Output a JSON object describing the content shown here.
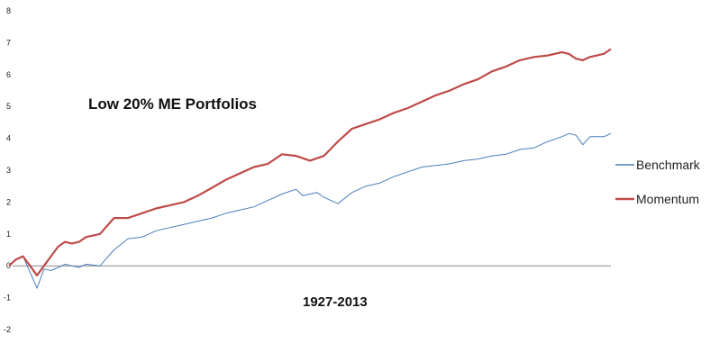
{
  "chart_data": {
    "type": "line",
    "title": "",
    "xlabel": "",
    "ylabel": "",
    "ylim": [
      -2,
      8
    ],
    "yticks": [
      -2,
      -1,
      0,
      1,
      2,
      3,
      4,
      5,
      6,
      7,
      8
    ],
    "grid": false,
    "legend_position": "right",
    "annotations": {
      "portfolio": "Low 20% ME Portfolios",
      "period": "1927-2013"
    },
    "x_start_year": 1927,
    "x_end_year": 2013,
    "series": [
      {
        "name": "Benchmark",
        "color": "#4a7ebb",
        "x": [
          1927,
          1928,
          1929,
          1930,
          1931,
          1932,
          1933,
          1934,
          1935,
          1936,
          1937,
          1938,
          1940,
          1942,
          1944,
          1946,
          1948,
          1950,
          1952,
          1954,
          1956,
          1958,
          1960,
          1962,
          1964,
          1966,
          1968,
          1969,
          1971,
          1972,
          1974,
          1976,
          1978,
          1980,
          1982,
          1984,
          1986,
          1988,
          1990,
          1992,
          1994,
          1996,
          1998,
          2000,
          2002,
          2004,
          2006,
          2007,
          2008,
          2009,
          2010,
          2012,
          2013
        ],
        "values": [
          0.0,
          0.2,
          0.3,
          -0.2,
          -0.7,
          -0.1,
          -0.15,
          -0.05,
          0.05,
          0.0,
          -0.05,
          0.05,
          0.0,
          0.5,
          0.85,
          0.9,
          1.1,
          1.2,
          1.3,
          1.4,
          1.5,
          1.65,
          1.75,
          1.85,
          2.05,
          2.25,
          2.4,
          2.2,
          2.3,
          2.15,
          1.95,
          2.3,
          2.5,
          2.6,
          2.8,
          2.95,
          3.1,
          3.15,
          3.2,
          3.3,
          3.35,
          3.45,
          3.5,
          3.65,
          3.7,
          3.9,
          4.05,
          4.15,
          4.1,
          3.8,
          4.05,
          4.05,
          4.15
        ]
      },
      {
        "name": "Momentum",
        "color": "#be4b48",
        "x": [
          1927,
          1928,
          1929,
          1930,
          1931,
          1932,
          1933,
          1934,
          1935,
          1936,
          1937,
          1938,
          1940,
          1942,
          1944,
          1946,
          1948,
          1950,
          1952,
          1954,
          1956,
          1958,
          1960,
          1962,
          1964,
          1966,
          1968,
          1970,
          1972,
          1974,
          1976,
          1978,
          1980,
          1982,
          1984,
          1986,
          1988,
          1990,
          1992,
          1994,
          1996,
          1998,
          2000,
          2002,
          2004,
          2006,
          2007,
          2008,
          2009,
          2010,
          2012,
          2013
        ],
        "values": [
          0.0,
          0.2,
          0.3,
          0.0,
          -0.3,
          0.0,
          0.3,
          0.6,
          0.75,
          0.7,
          0.75,
          0.9,
          1.0,
          1.5,
          1.5,
          1.65,
          1.8,
          1.9,
          2.0,
          2.2,
          2.45,
          2.7,
          2.9,
          3.1,
          3.2,
          3.5,
          3.45,
          3.3,
          3.45,
          3.9,
          4.3,
          4.45,
          4.6,
          4.8,
          4.95,
          5.15,
          5.35,
          5.5,
          5.7,
          5.85,
          6.1,
          6.25,
          6.45,
          6.55,
          6.6,
          6.7,
          6.65,
          6.5,
          6.45,
          6.55,
          6.65,
          6.8
        ]
      }
    ]
  }
}
